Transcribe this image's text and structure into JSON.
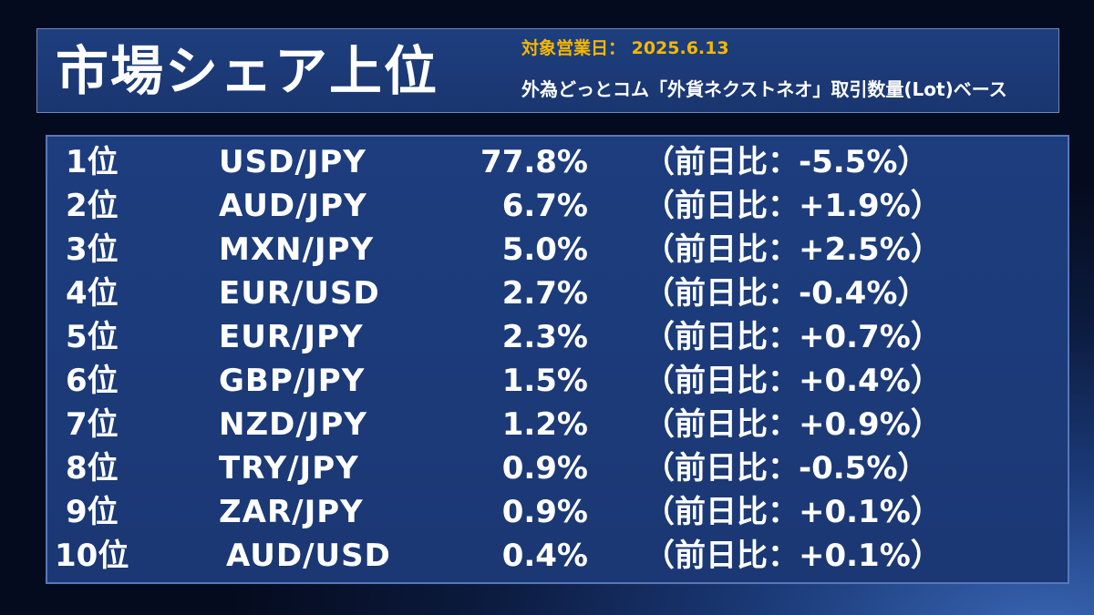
{
  "header": {
    "title": "市場シェア上位",
    "date_line": "対象営業日： 2025.6.13",
    "subtitle": "外為どっとコム「外貨ネクストネオ」取引数量(Lot)ベース"
  },
  "rankings": [
    {
      "rank": "1位",
      "pair": "USD/JPY",
      "share": "77.8%",
      "change": "（前日比：-5.5%）"
    },
    {
      "rank": "2位",
      "pair": "AUD/JPY",
      "share": "6.7%",
      "change": "（前日比：+1.9%）"
    },
    {
      "rank": "3位",
      "pair": "MXN/JPY",
      "share": "5.0%",
      "change": "（前日比：+2.5%）"
    },
    {
      "rank": "4位",
      "pair": "EUR/USD",
      "share": "2.7%",
      "change": "（前日比：-0.4%）"
    },
    {
      "rank": "5位",
      "pair": "EUR/JPY",
      "share": "2.3%",
      "change": "（前日比：+0.7%）"
    },
    {
      "rank": "6位",
      "pair": "GBP/JPY",
      "share": "1.5%",
      "change": "（前日比：+0.4%）"
    },
    {
      "rank": "7位",
      "pair": "NZD/JPY",
      "share": "1.2%",
      "change": "（前日比：+0.9%）"
    },
    {
      "rank": "8位",
      "pair": "TRY/JPY",
      "share": "0.9%",
      "change": "（前日比：-0.5%）"
    },
    {
      "rank": "9位",
      "pair": "ZAR/JPY",
      "share": "0.9%",
      "change": "（前日比：+0.1%）"
    },
    {
      "rank": "10位",
      "pair": "AUD/USD",
      "share": "0.4%",
      "change": "（前日比：+0.1%）"
    }
  ],
  "colors": {
    "accent": "#f5b800",
    "panel": "#1d3d7e",
    "text": "#ffffff"
  }
}
